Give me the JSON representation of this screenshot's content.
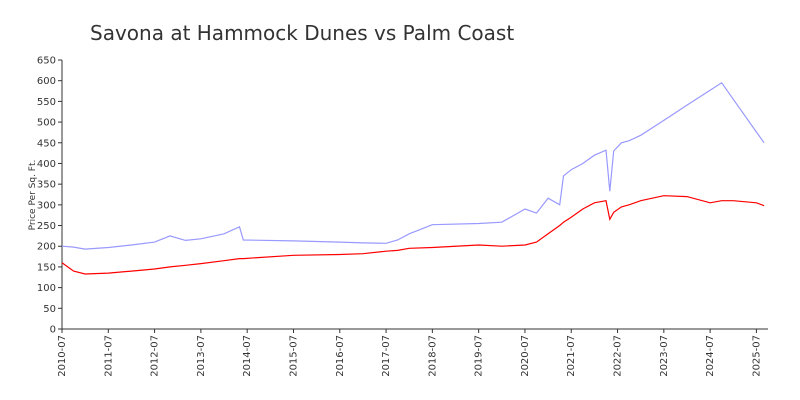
{
  "chart_data": {
    "type": "line",
    "title": "Savona at Hammock Dunes vs Palm Coast",
    "y_label": "Price Per Sq. Ft.",
    "x": [
      "2010-07",
      "2010-10",
      "2011-01",
      "2011-07",
      "2012-01",
      "2012-07",
      "2012-11",
      "2013-03",
      "2013-07",
      "2014-01",
      "2014-05",
      "2014-06",
      "2015-07",
      "2016-07",
      "2017-01",
      "2017-07",
      "2017-10",
      "2018-01",
      "2018-07",
      "2019-07",
      "2020-01",
      "2020-07",
      "2020-10",
      "2021-01",
      "2021-04",
      "2021-05",
      "2021-07",
      "2021-10",
      "2022-01",
      "2022-04",
      "2022-05",
      "2022-06",
      "2022-08",
      "2022-10",
      "2023-01",
      "2023-07",
      "2024-01",
      "2024-07",
      "2024-10",
      "2025-01",
      "2025-07",
      "2025-09"
    ],
    "series": [
      {
        "color": "#9999ff",
        "values": [
          200,
          198,
          193,
          197,
          203,
          210,
          225,
          214,
          218,
          230,
          247,
          215,
          213,
          210,
          208,
          207,
          215,
          230,
          252,
          255,
          258,
          290,
          280,
          316,
          300,
          370,
          385,
          400,
          420,
          432,
          333,
          430,
          450,
          455,
          468,
          504,
          541,
          577,
          595,
          555,
          476,
          450
        ]
      },
      {
        "color": "#ff0000",
        "values": [
          160,
          140,
          133,
          135,
          140,
          145,
          150,
          154,
          158,
          165,
          170,
          170,
          178,
          180,
          182,
          188,
          190,
          195,
          197,
          203,
          200,
          203,
          210,
          230,
          250,
          258,
          270,
          290,
          305,
          310,
          265,
          282,
          295,
          300,
          310,
          322,
          320,
          305,
          310,
          310,
          305,
          298
        ]
      }
    ],
    "xlim": [
      "2010-07",
      "2025-10"
    ],
    "xticks": [
      "2010-07",
      "2011-07",
      "2012-07",
      "2013-07",
      "2014-07",
      "2015-07",
      "2016-07",
      "2017-07",
      "2018-07",
      "2019-07",
      "2020-07",
      "2021-07",
      "2022-07",
      "2023-07",
      "2024-07",
      "2025-07"
    ],
    "ylim": [
      0,
      650
    ],
    "yticks": [
      0,
      50,
      100,
      150,
      200,
      250,
      300,
      350,
      400,
      450,
      500,
      550,
      600,
      650
    ]
  }
}
